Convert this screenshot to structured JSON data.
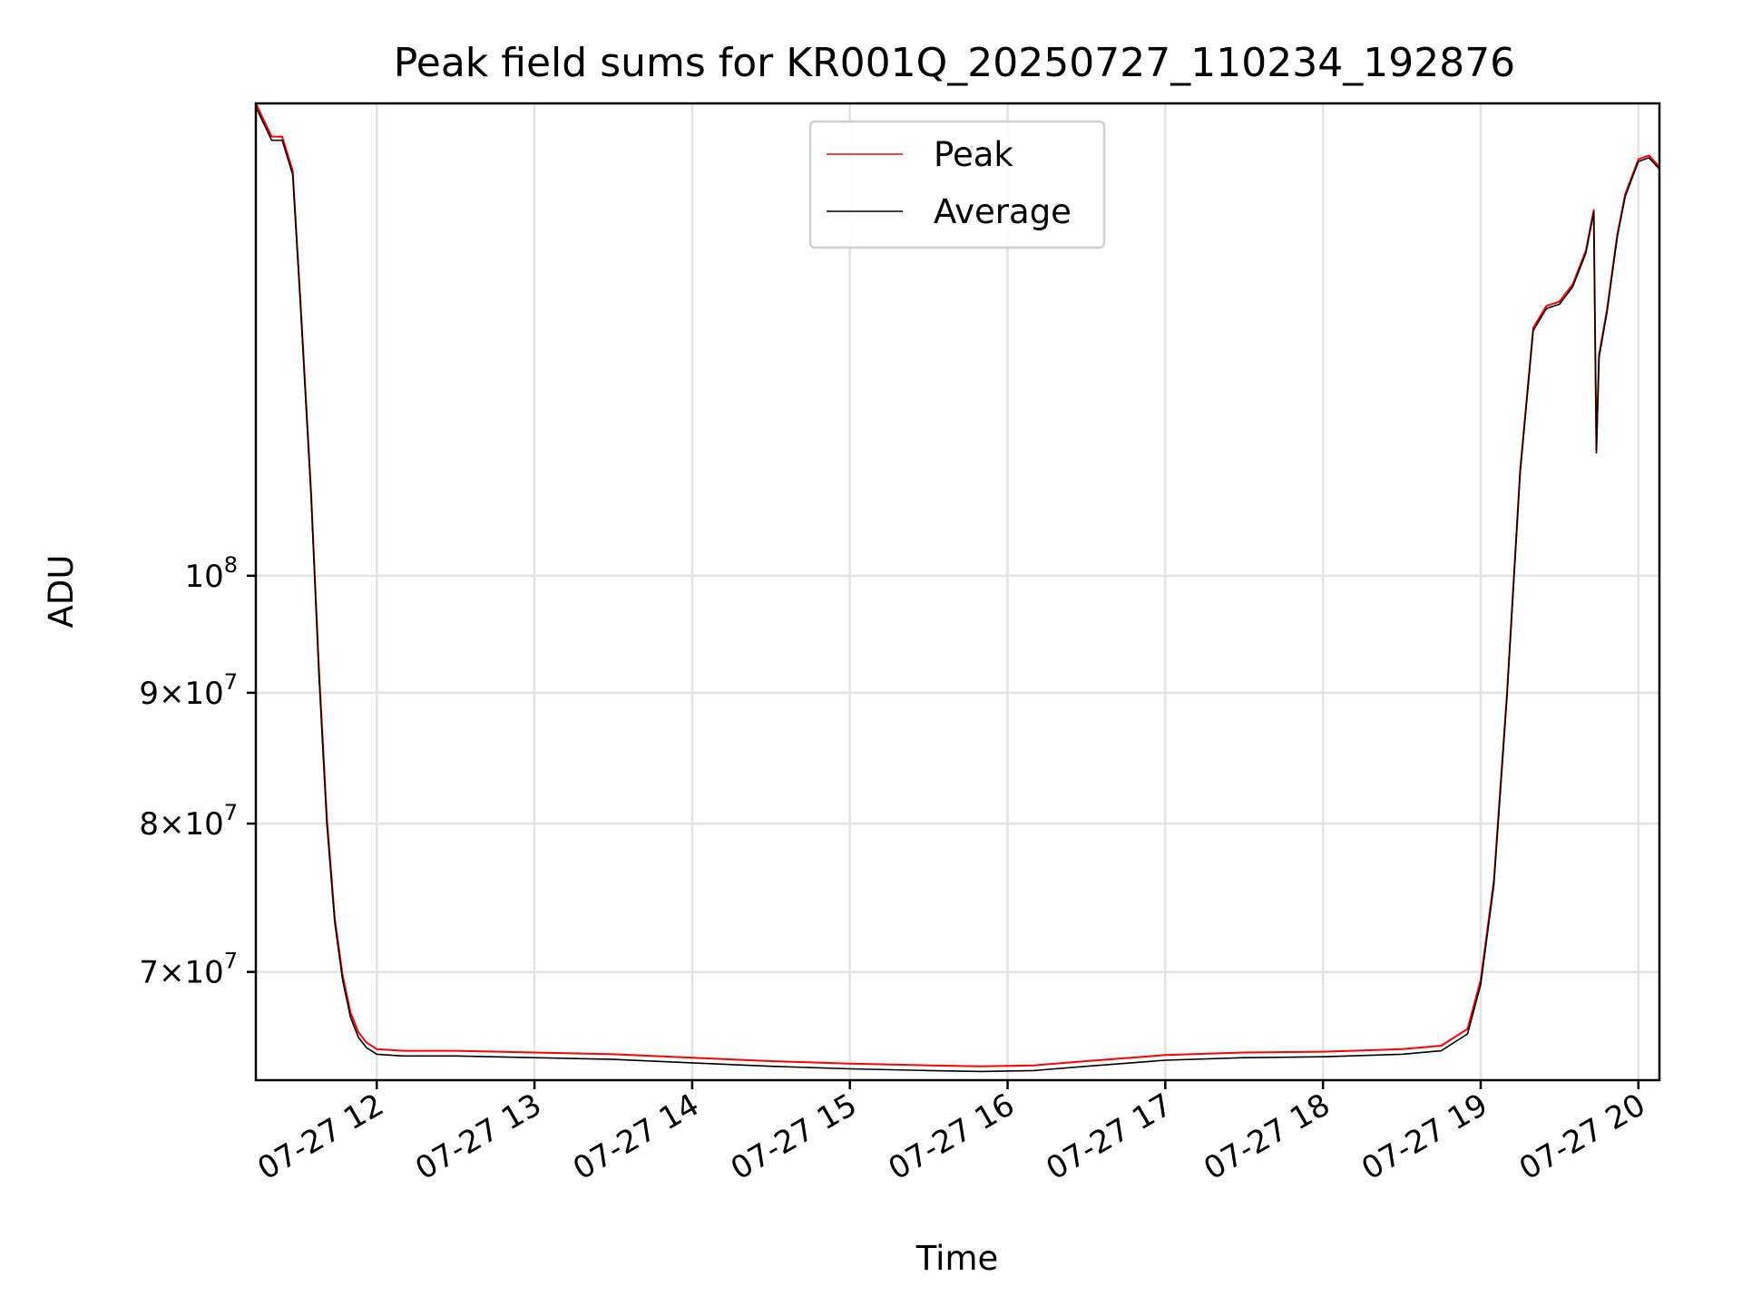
{
  "chart_data": {
    "type": "line",
    "title": "Peak field sums for KR001Q_20250727_110234_192876",
    "xlabel": "Time",
    "ylabel": "ADU",
    "yscale": "log",
    "grid": true,
    "legend_position": "top-center",
    "x_ticks": [
      "07-27 12",
      "07-27 13",
      "07-27 14",
      "07-27 15",
      "07-27 16",
      "07-27 17",
      "07-27 18",
      "07-27 19",
      "07-27 20"
    ],
    "y_ticks": [
      {
        "value": 70000000,
        "mantissa": "7",
        "base": "10",
        "exp": "7"
      },
      {
        "value": 80000000,
        "mantissa": "8",
        "base": "10",
        "exp": "7"
      },
      {
        "value": 90000000,
        "mantissa": "9",
        "base": "10",
        "exp": "7"
      },
      {
        "value": 100000000,
        "mantissa": "",
        "base": "10",
        "exp": "8"
      }
    ],
    "xlim": [
      "2025-07-27 11:14",
      "2025-07-27 20:08"
    ],
    "ylim": [
      63500000,
      153000000
    ],
    "series": [
      {
        "name": "Peak",
        "color": "#ff0000",
        "x": [
          "2025-07-27 11:14",
          "2025-07-27 11:20",
          "2025-07-27 11:24",
          "2025-07-27 11:28",
          "2025-07-27 11:31",
          "2025-07-27 11:35",
          "2025-07-27 11:38",
          "2025-07-27 11:41",
          "2025-07-27 11:44",
          "2025-07-27 11:47",
          "2025-07-27 11:50",
          "2025-07-27 11:53",
          "2025-07-27 11:56",
          "2025-07-27 12:00",
          "2025-07-27 12:10",
          "2025-07-27 12:30",
          "2025-07-27 13:00",
          "2025-07-27 13:30",
          "2025-07-27 14:00",
          "2025-07-27 14:30",
          "2025-07-27 15:00",
          "2025-07-27 15:30",
          "2025-07-27 15:50",
          "2025-07-27 16:10",
          "2025-07-27 16:30",
          "2025-07-27 17:00",
          "2025-07-27 17:30",
          "2025-07-27 18:00",
          "2025-07-27 18:30",
          "2025-07-27 18:45",
          "2025-07-27 18:55",
          "2025-07-27 19:00",
          "2025-07-27 19:05",
          "2025-07-27 19:10",
          "2025-07-27 19:15",
          "2025-07-27 19:20",
          "2025-07-27 19:25",
          "2025-07-27 19:30",
          "2025-07-27 19:35",
          "2025-07-27 19:40",
          "2025-07-27 19:43",
          "2025-07-27 19:44",
          "2025-07-27 19:45",
          "2025-07-27 19:48",
          "2025-07-27 19:52",
          "2025-07-27 19:55",
          "2025-07-27 20:00",
          "2025-07-27 20:04",
          "2025-07-27 20:08"
        ],
        "values": [
          153000000,
          148500000,
          148500000,
          144000000,
          128000000,
          108000000,
          92000000,
          80500000,
          73500000,
          69800000,
          67500000,
          66300000,
          65700000,
          65300000,
          65200000,
          65200000,
          65100000,
          65000000,
          64800000,
          64600000,
          64450000,
          64350000,
          64300000,
          64350000,
          64600000,
          64950000,
          65100000,
          65150000,
          65300000,
          65500000,
          66500000,
          69500000,
          76000000,
          90000000,
          110000000,
          125000000,
          127500000,
          128000000,
          130000000,
          134000000,
          139000000,
          112000000,
          122000000,
          127000000,
          136000000,
          141000000,
          145500000,
          146000000,
          144500000
        ]
      },
      {
        "name": "Average",
        "color": "#000000",
        "x": [
          "2025-07-27 11:14",
          "2025-07-27 11:20",
          "2025-07-27 11:24",
          "2025-07-27 11:28",
          "2025-07-27 11:31",
          "2025-07-27 11:35",
          "2025-07-27 11:38",
          "2025-07-27 11:41",
          "2025-07-27 11:44",
          "2025-07-27 11:47",
          "2025-07-27 11:50",
          "2025-07-27 11:53",
          "2025-07-27 11:56",
          "2025-07-27 12:00",
          "2025-07-27 12:10",
          "2025-07-27 12:30",
          "2025-07-27 13:00",
          "2025-07-27 13:30",
          "2025-07-27 14:00",
          "2025-07-27 14:30",
          "2025-07-27 15:00",
          "2025-07-27 15:30",
          "2025-07-27 15:50",
          "2025-07-27 16:10",
          "2025-07-27 16:30",
          "2025-07-27 17:00",
          "2025-07-27 17:30",
          "2025-07-27 18:00",
          "2025-07-27 18:30",
          "2025-07-27 18:45",
          "2025-07-27 18:55",
          "2025-07-27 19:00",
          "2025-07-27 19:05",
          "2025-07-27 19:10",
          "2025-07-27 19:15",
          "2025-07-27 19:20",
          "2025-07-27 19:25",
          "2025-07-27 19:30",
          "2025-07-27 19:35",
          "2025-07-27 19:40",
          "2025-07-27 19:43",
          "2025-07-27 19:44",
          "2025-07-27 19:45",
          "2025-07-27 19:48",
          "2025-07-27 19:52",
          "2025-07-27 19:55",
          "2025-07-27 20:00",
          "2025-07-27 20:04",
          "2025-07-27 20:08"
        ],
        "values": [
          152500000,
          148000000,
          148000000,
          143500000,
          127500000,
          107500000,
          91500000,
          80000000,
          73200000,
          69500000,
          67200000,
          66000000,
          65400000,
          65000000,
          64900000,
          64900000,
          64800000,
          64700000,
          64500000,
          64300000,
          64150000,
          64050000,
          64000000,
          64050000,
          64300000,
          64650000,
          64800000,
          64850000,
          65000000,
          65200000,
          66200000,
          69200000,
          75700000,
          89700000,
          109700000,
          124700000,
          127200000,
          127700000,
          129700000,
          133700000,
          138700000,
          111700000,
          121700000,
          126700000,
          135700000,
          140700000,
          145200000,
          145700000,
          144200000
        ]
      }
    ]
  }
}
